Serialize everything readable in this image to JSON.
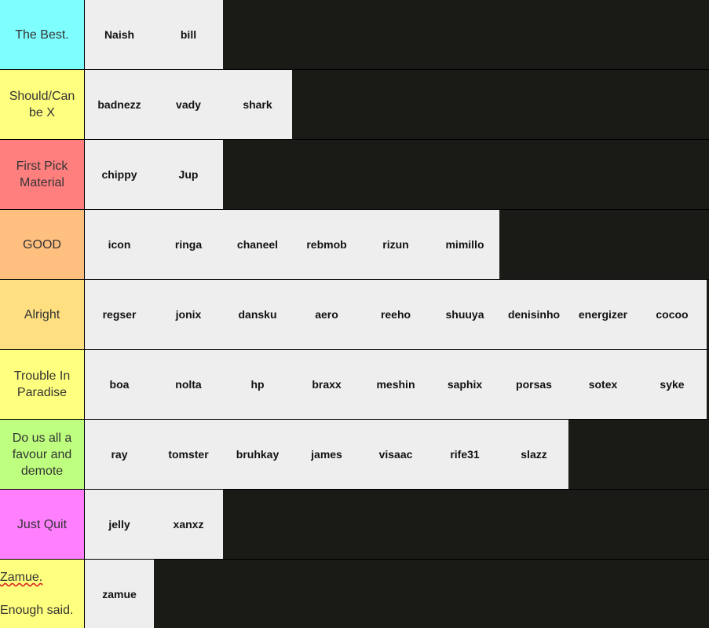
{
  "tiers": [
    {
      "label": "The Best.",
      "color": "#7ffeff",
      "items": [
        "Naish",
        "bill"
      ]
    },
    {
      "label": "Should/Can be X",
      "color": "#ffff7f",
      "items": [
        "badnezz",
        "vady",
        "shark"
      ]
    },
    {
      "label": "First Pick Material",
      "color": "#ff7f7f",
      "items": [
        "chippy",
        "Jup"
      ]
    },
    {
      "label": "GOOD",
      "color": "#ffbf7f",
      "items": [
        "icon",
        "ringa",
        "chaneel",
        "rebmob",
        "rizun",
        "mimillo"
      ]
    },
    {
      "label": "Alright",
      "color": "#ffdf80",
      "items": [
        "regser",
        "jonix",
        "dansku",
        "aero",
        "reeho",
        "shuuya",
        "denisinho",
        "energizer",
        "cocoo"
      ]
    },
    {
      "label": "Trouble In Paradise",
      "color": "#ffff7f",
      "items": [
        "boa",
        "nolta",
        "hp",
        "braxx",
        "meshin",
        "saphix",
        "porsas",
        "sotex",
        "syke"
      ]
    },
    {
      "label": "Do us all a favour and demote",
      "color": "#bfff7f",
      "items": [
        "ray",
        "tomster",
        "bruhkay",
        "james",
        "visaac",
        "rife31",
        "slazz"
      ]
    },
    {
      "label": "Just Quit",
      "color": "#ff7fff",
      "items": [
        "jelly",
        "xanxz"
      ]
    },
    {
      "label_line1": "Zamue.",
      "label_line2": "Enough said.",
      "color": "#ffff7f",
      "items": [
        "zamue"
      ]
    }
  ]
}
